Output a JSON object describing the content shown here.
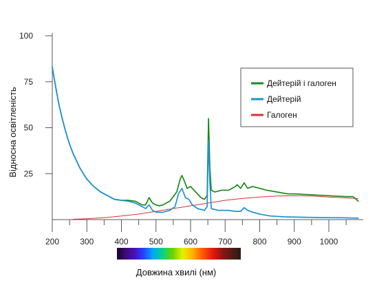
{
  "chart_data": {
    "type": "line",
    "xlabel": "Довжина хвилі (нм)",
    "ylabel": "Відносна освітленість",
    "xlim": [
      200,
      1100
    ],
    "ylim": [
      0,
      100
    ],
    "x_ticks": [
      200,
      300,
      400,
      500,
      600,
      700,
      800,
      900,
      1000
    ],
    "y_ticks": [
      25,
      50,
      75,
      100
    ],
    "grid": false,
    "legend_position": "top-right",
    "spectrum_bar": true,
    "series": [
      {
        "name": "Дейтерій і галоген",
        "color": "#1a8a1a",
        "points": [
          [
            200,
            83
          ],
          [
            210,
            72
          ],
          [
            220,
            62
          ],
          [
            230,
            54
          ],
          [
            240,
            47
          ],
          [
            250,
            41
          ],
          [
            260,
            36
          ],
          [
            270,
            32
          ],
          [
            280,
            28
          ],
          [
            290,
            25
          ],
          [
            300,
            22
          ],
          [
            320,
            18
          ],
          [
            340,
            15
          ],
          [
            360,
            13
          ],
          [
            380,
            11
          ],
          [
            400,
            10.5
          ],
          [
            420,
            10.5
          ],
          [
            440,
            10
          ],
          [
            460,
            8
          ],
          [
            470,
            8
          ],
          [
            480,
            12
          ],
          [
            490,
            9
          ],
          [
            500,
            8
          ],
          [
            510,
            7.5
          ],
          [
            520,
            8
          ],
          [
            540,
            10
          ],
          [
            560,
            15
          ],
          [
            570,
            22
          ],
          [
            575,
            24
          ],
          [
            580,
            22
          ],
          [
            590,
            17
          ],
          [
            600,
            18
          ],
          [
            610,
            16
          ],
          [
            620,
            14
          ],
          [
            630,
            12
          ],
          [
            640,
            11
          ],
          [
            648,
            13
          ],
          [
            652,
            55
          ],
          [
            656,
            28
          ],
          [
            660,
            16
          ],
          [
            670,
            15
          ],
          [
            690,
            16
          ],
          [
            710,
            16
          ],
          [
            720,
            17
          ],
          [
            730,
            18
          ],
          [
            735,
            19
          ],
          [
            745,
            17
          ],
          [
            755,
            20
          ],
          [
            765,
            17
          ],
          [
            780,
            18
          ],
          [
            800,
            17
          ],
          [
            820,
            16
          ],
          [
            850,
            15
          ],
          [
            880,
            14
          ],
          [
            900,
            14
          ],
          [
            950,
            13.5
          ],
          [
            1000,
            13
          ],
          [
            1050,
            12.5
          ],
          [
            1070,
            12.5
          ],
          [
            1085,
            10
          ]
        ]
      },
      {
        "name": "Дейтерій",
        "color": "#1e90d6",
        "points": [
          [
            200,
            83
          ],
          [
            210,
            72
          ],
          [
            220,
            62
          ],
          [
            230,
            54
          ],
          [
            240,
            47
          ],
          [
            250,
            41
          ],
          [
            260,
            36
          ],
          [
            270,
            32
          ],
          [
            280,
            28
          ],
          [
            290,
            25
          ],
          [
            300,
            22
          ],
          [
            320,
            18
          ],
          [
            340,
            15
          ],
          [
            360,
            13
          ],
          [
            380,
            11
          ],
          [
            400,
            10.5
          ],
          [
            420,
            10
          ],
          [
            440,
            9
          ],
          [
            460,
            7
          ],
          [
            470,
            6
          ],
          [
            480,
            8
          ],
          [
            490,
            5
          ],
          [
            500,
            4
          ],
          [
            520,
            4
          ],
          [
            540,
            5
          ],
          [
            555,
            7
          ],
          [
            565,
            14
          ],
          [
            575,
            17
          ],
          [
            585,
            12
          ],
          [
            595,
            11
          ],
          [
            605,
            8
          ],
          [
            620,
            6
          ],
          [
            640,
            5
          ],
          [
            648,
            7
          ],
          [
            652,
            43
          ],
          [
            656,
            20
          ],
          [
            660,
            6
          ],
          [
            680,
            5
          ],
          [
            710,
            5
          ],
          [
            730,
            4.5
          ],
          [
            745,
            4.5
          ],
          [
            755,
            6.5
          ],
          [
            765,
            5
          ],
          [
            780,
            4
          ],
          [
            800,
            3
          ],
          [
            830,
            2
          ],
          [
            870,
            1.5
          ],
          [
            920,
            1.3
          ],
          [
            980,
            1.1
          ],
          [
            1040,
            1
          ],
          [
            1085,
            0.8
          ]
        ]
      },
      {
        "name": "Галоген",
        "color": "#d83030",
        "points": [
          [
            260,
            0.2
          ],
          [
            300,
            0.5
          ],
          [
            350,
            1
          ],
          [
            400,
            2
          ],
          [
            450,
            3
          ],
          [
            500,
            4.5
          ],
          [
            550,
            6
          ],
          [
            600,
            7.5
          ],
          [
            650,
            9
          ],
          [
            700,
            10.5
          ],
          [
            750,
            11.5
          ],
          [
            800,
            12.3
          ],
          [
            850,
            12.8
          ],
          [
            900,
            13
          ],
          [
            950,
            12.8
          ],
          [
            1000,
            12.3
          ],
          [
            1050,
            11.8
          ],
          [
            1085,
            11.4
          ]
        ]
      }
    ]
  }
}
